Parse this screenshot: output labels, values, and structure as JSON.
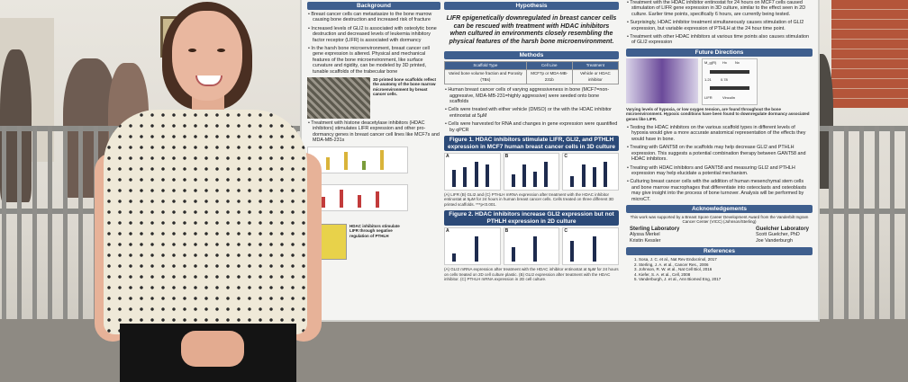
{
  "poster": {
    "col1": {
      "header": "Background",
      "bullets": [
        "Breast cancer cells can metastasize to the bone marrow causing bone destruction and increased risk of fracture",
        "Increased levels of GLI2 is associated with osteolytic bone destruction and decreased levels of leukemia inhibitory factor receptor (LIFR) is associated with dormancy",
        "In the harsh bone microenvironment, breast cancer cell gene expression is altered. Physical and mechanical features of the bone microenvironment, like surface curvature and rigidity, can be modeled by 3D printed, tunable scaffolds of the trabecular bone"
      ],
      "image_caption": "3D printed bone scaffolds reflect the anatomy of the bone marrow microenvironment by breast cancer cells.",
      "bullet_hdac": "Treatment with histone deacetylase inhibitors (HDAC inhibitors) stimulates LIFR expression and other pro-dormancy genes in breast cancer cell lines like MCF7s and MDA-MB-231s",
      "side_caption": "HDAC inhibitors stimulate LIFR through negative regulation of PTHLH"
    },
    "col2": {
      "header": "Hypothesis",
      "hypothesis": "LIFR epigenetically downregulated in breast cancer cells can be rescued with treatment with HDAC inhibitors when cultured in environments closely resembling the physical features of the harsh bone microenvironment.",
      "methods_header": "Methods",
      "table_headers": [
        "Scaffold Type",
        "Cell Line",
        "Treatment"
      ],
      "table_row": [
        "Varied bone volume fraction and Porosity (TBs)",
        "MCF7p or MDA-MB-231b",
        "Vehicle or HDAC inhibitor"
      ],
      "method_bullets": [
        "Human breast cancer cells of varying aggressiveness in bone (MCF7=non-aggressive, MDA-MB-231=highly aggressive) were seeded onto bone scaffolds",
        "Cells were treated with either vehicle (DMSO) or the with the HDAC inhibitor entinostat at 5µM",
        "Cells were harvested for RNA and changes in gene expression were quantified by qPCR"
      ],
      "fig1_title": "Figure 1. HDAC inhibitors stimulate LIFR, GLI2, and PTHLH expression in MCF7 human breast cancer cells in 3D culture",
      "fig1_panels": [
        "A",
        "B",
        "C"
      ],
      "fig1_caption": "(A) LIFR (B) GLI2 and (C) PTHLH mRNA expression after treatment with the HDAC inhibitor entinostat at 5µM for 24 hours in human breast cancer cells. Cells treated on three different 3D printed scaffolds. ***p<0.001.",
      "fig2_title": "Figure 2. HDAC inhibitors increase GLI2 expression but not PTHLH expression in 2D culture",
      "fig2_panels": [
        "A",
        "B",
        "C"
      ],
      "fig2_caption": "(A) GLI2 mRNA expression after treatment with the HDAC inhibitor entinostat at 5µM for 24 hours on cells treated on 2D cell culture plastic. (B) GLI2 expression after treatment with the HDAC inhibitor. (C) PTHLH mRNA expression in 2D cell culture."
    },
    "col3": {
      "results_bullets": [
        "Treatment with the HDAC inhibitor entinostat for 24 hours on MCF7 cells caused stimulation of LIFR gene expression in 3D culture, similar to the effect seen in 2D culture. Earlier time points, specifically 6 hours, are currently being tested.",
        "Surprisingly, HDAC inhibitor treatment simultaneously causes stimulation of GLI2 expression, but variable expression of PTHLH at the 24 hour time point.",
        "Treatment with other HDAC inhibitors at various time points also causes stimulation of GLI2 expression"
      ],
      "future_header": "Future Directions",
      "blot_labels": [
        "M_g(R)",
        "Hx",
        "Nx",
        "LIFR",
        "Vinculin"
      ],
      "blot_values": [
        "1.21",
        "0.78"
      ],
      "future_caption": "Varying levels of hypoxia, or low oxygen tension, are found throughout the bone microenvironment. Hypoxic conditions have been found to downregulate dormancy associated genes like LIFR.",
      "future_bullets": [
        "Testing the HDAC inhibitors on the various scaffold types in different levels of hypoxia would give a more accurate anatomical representation of the effects they would have in bone.",
        "Treating with GANT58 on the scaffolds may help decrease GLI2 and PTHLH expression. This suggests a potential combination therapy between GANT58 and HDAC inhibitors.",
        "Treating with HDAC inhibitors and GANT58 and measuring GLI2 and PTHLH expression may help elucidate a potential mechanism.",
        "Culturing breast cancer cells with the addition of human mesenchymal stem cells and bone marrow macrophages that differentiate into osteoclasts and osteoblasts may give insight into the process of bone turnover. Analysis will be performed by microCT."
      ],
      "ack_header": "Acknowledgements",
      "ack_text": "This work was supported by a Breast Spore Career Development Award from the Vanderbilt Ingram Cancer Center (VICC) (Johnson/Sterling)",
      "lab1": "Sterling Laboratory",
      "lab1_members": [
        "Alyssa Merkel",
        "Kristin Kessler"
      ],
      "lab2": "Guelcher Laboratory",
      "lab2_members": [
        "Scott Guelcher, PhD",
        "Joe Vanderburgh"
      ],
      "ref_header": "References",
      "references": [
        "Sosa, J. C. et al., Nat Rev Endocrinol, 2017",
        "Sterling, J. A. et al., Cancer Res., 2006",
        "Johnson, R. W. et al., Nat Cell Biol, 2016",
        "Kiefer, S. A. et al., Cell, 2008",
        "Vanderburgh, J. et al., Ann Biomed Eng, 2017"
      ]
    }
  },
  "chart_data": [
    {
      "type": "bar",
      "categories": [
        "A1",
        "A2",
        "A3",
        "A4"
      ],
      "values": [
        6,
        7,
        9,
        8
      ]
    },
    {
      "type": "bar",
      "categories": [
        "B1",
        "B2",
        "B3",
        "B4"
      ],
      "values": [
        5,
        9,
        6,
        10
      ]
    },
    {
      "type": "bar",
      "categories": [
        "C1",
        "C2",
        "C3",
        "C4"
      ],
      "values": [
        4,
        8,
        7,
        9
      ]
    },
    {
      "type": "bar",
      "categories": [
        "D1",
        "D2"
      ],
      "values": [
        3,
        9
      ]
    },
    {
      "type": "bar",
      "categories": [
        "E1",
        "E2"
      ],
      "values": [
        4,
        7
      ]
    },
    {
      "type": "bar",
      "categories": [
        "F1",
        "F2"
      ],
      "values": [
        5,
        6
      ]
    }
  ]
}
